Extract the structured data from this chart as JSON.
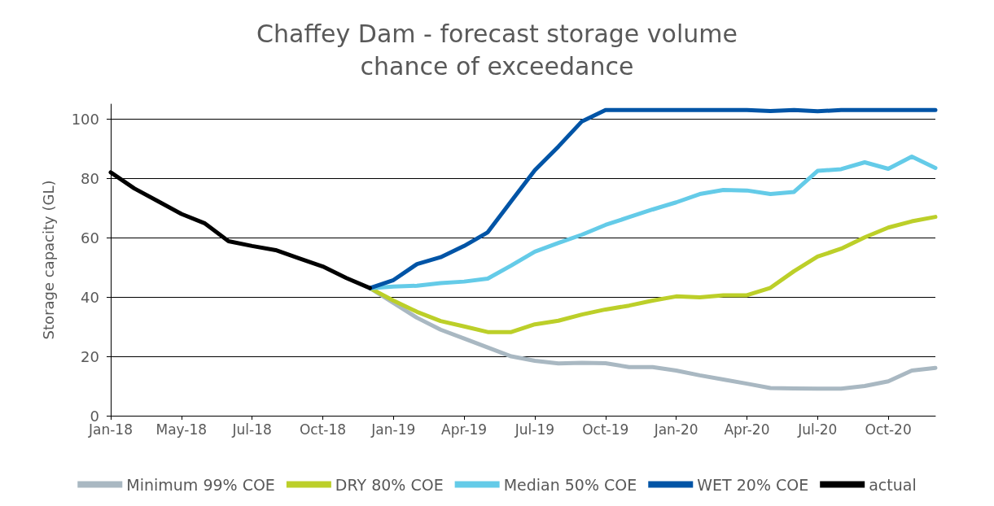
{
  "chart_data": {
    "type": "line",
    "title": "Chaffey Dam - forecast storage volume\nchance of exceedance",
    "ylabel": "Storage capacity (GL)",
    "categories": [
      "Jan-18",
      null,
      null,
      "May-18",
      null,
      null,
      "Jul-18",
      null,
      null,
      "Oct-18",
      null,
      null,
      "Jan-19",
      null,
      null,
      "Apr-19",
      null,
      null,
      "Jul-19",
      null,
      null,
      "Oct-19",
      null,
      null,
      "Jan-20",
      null,
      null,
      "Apr-20",
      null,
      null,
      "Jul-20",
      null,
      null,
      "Oct-20",
      null,
      null
    ],
    "series": [
      {
        "name": "Minimum 99% COE",
        "color": "#a9b8c2",
        "values": [
          null,
          null,
          null,
          null,
          null,
          null,
          null,
          null,
          null,
          null,
          null,
          43,
          38,
          33,
          29,
          26,
          23,
          20,
          18.5,
          17.6,
          17.8,
          17.7,
          16.4,
          16.4,
          15.2,
          13.6,
          12.2,
          10.8,
          9.3,
          9.2,
          9.1,
          9.1,
          10,
          11.6,
          15.2,
          16.1
        ]
      },
      {
        "name": "DRY 80% COE",
        "color": "#bccf29",
        "values": [
          null,
          null,
          null,
          null,
          null,
          null,
          null,
          null,
          null,
          null,
          null,
          43,
          38.8,
          35,
          31.9,
          30.1,
          28.2,
          28.2,
          30.8,
          32,
          34.1,
          35.8,
          37.1,
          38.8,
          40.2,
          39.9,
          40.6,
          40.6,
          43.1,
          48.7,
          53.6,
          56.3,
          60.1,
          63.4,
          65.5,
          67
        ]
      },
      {
        "name": "Median 50% COE",
        "color": "#64cbe8",
        "values": [
          null,
          null,
          null,
          null,
          null,
          null,
          null,
          null,
          null,
          null,
          null,
          43,
          43.5,
          43.8,
          44.7,
          45.2,
          46.2,
          50.6,
          55.3,
          58.2,
          61,
          64.3,
          66.9,
          69.5,
          71.9,
          74.7,
          76.1,
          75.9,
          74.7,
          75.4,
          82.5,
          83.1,
          85.4,
          83.2,
          87.3,
          83.5
        ]
      },
      {
        "name": "WET 20% COE",
        "color": "#0054a6",
        "values": [
          null,
          null,
          null,
          null,
          null,
          null,
          null,
          null,
          null,
          null,
          null,
          43,
          45.7,
          51.1,
          53.4,
          57.2,
          61.8,
          72.3,
          82.7,
          90.7,
          99.2,
          103,
          103,
          103,
          103,
          103,
          103,
          103,
          102.7,
          103,
          102.6,
          103,
          103,
          103,
          103,
          103
        ]
      },
      {
        "name": "actual",
        "color": "#000000",
        "values": [
          82,
          76.6,
          72.3,
          68,
          64.8,
          58.8,
          57.2,
          55.8,
          53,
          50.3,
          46.4,
          43,
          null,
          null,
          null,
          null,
          null,
          null,
          null,
          null,
          null,
          null,
          null,
          null,
          null,
          null,
          null,
          null,
          null,
          null,
          null,
          null,
          null,
          null,
          null,
          null
        ]
      }
    ],
    "ylim": [
      0,
      105
    ],
    "yticks": [
      0,
      20,
      40,
      60,
      80,
      100
    ],
    "grid": "y",
    "legend": "bottom",
    "marker": "none",
    "line_style": "solid"
  }
}
